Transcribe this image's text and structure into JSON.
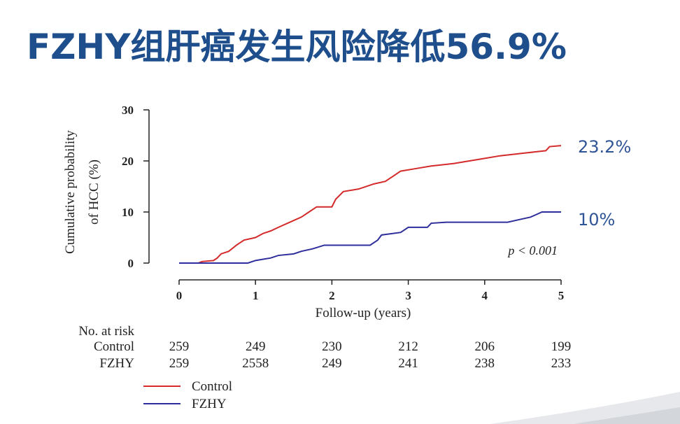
{
  "chart_data": {
    "type": "line",
    "title": "FZHY组肝癌发生风险降低56.9%",
    "xlabel": "Follow-up (years)",
    "ylabel": [
      "Cumulative probability",
      "of HCC (%)"
    ],
    "xlim": [
      0,
      5
    ],
    "xticks": [
      0,
      1,
      2,
      3,
      4,
      5
    ],
    "ylim": [
      0,
      30
    ],
    "yticks": [
      0,
      10,
      20,
      30
    ],
    "series": [
      {
        "name": "Control",
        "color": "#d42a2a",
        "x": [
          0,
          0.25,
          0.3,
          0.45,
          0.5,
          0.55,
          0.65,
          0.75,
          0.85,
          1.0,
          1.1,
          1.2,
          1.3,
          1.45,
          1.6,
          1.7,
          1.8,
          2.0,
          2.05,
          2.15,
          2.35,
          2.55,
          2.7,
          2.8,
          2.9,
          3.1,
          3.3,
          3.6,
          3.8,
          4.0,
          4.2,
          4.5,
          4.8,
          4.85,
          5.0
        ],
        "values": [
          0,
          0,
          0.3,
          0.5,
          1,
          1.8,
          2.3,
          3.5,
          4.5,
          5,
          5.8,
          6.3,
          7,
          8,
          9,
          10,
          11,
          11,
          12.5,
          14,
          14.5,
          15.5,
          16,
          17,
          18,
          18.5,
          19,
          19.5,
          20,
          20.5,
          21,
          21.5,
          22,
          22.8,
          23
        ]
      },
      {
        "name": "FZHY",
        "color": "#2e2e9c",
        "x": [
          0,
          0.9,
          1.0,
          1.2,
          1.3,
          1.5,
          1.6,
          1.75,
          1.9,
          2.5,
          2.6,
          2.65,
          2.9,
          3.0,
          3.25,
          3.3,
          3.5,
          4.3,
          4.45,
          4.6,
          4.75,
          5.0
        ],
        "values": [
          0,
          0,
          0.5,
          1,
          1.5,
          1.8,
          2.3,
          2.8,
          3.5,
          3.5,
          4.5,
          5.5,
          6,
          7,
          7,
          7.8,
          8,
          8,
          8.5,
          9,
          10,
          10
        ]
      }
    ],
    "annotations": [
      "23.2%",
      "10%",
      "p < 0.001"
    ],
    "risk_table": {
      "title": "No. at risk",
      "rows": [
        {
          "name": "Control",
          "values": [
            "259",
            "249",
            "230",
            "212",
            "206",
            "199"
          ]
        },
        {
          "name": "FZHY",
          "values": [
            "259",
            "2558",
            "249",
            "241",
            "238",
            "233"
          ]
        }
      ]
    }
  }
}
